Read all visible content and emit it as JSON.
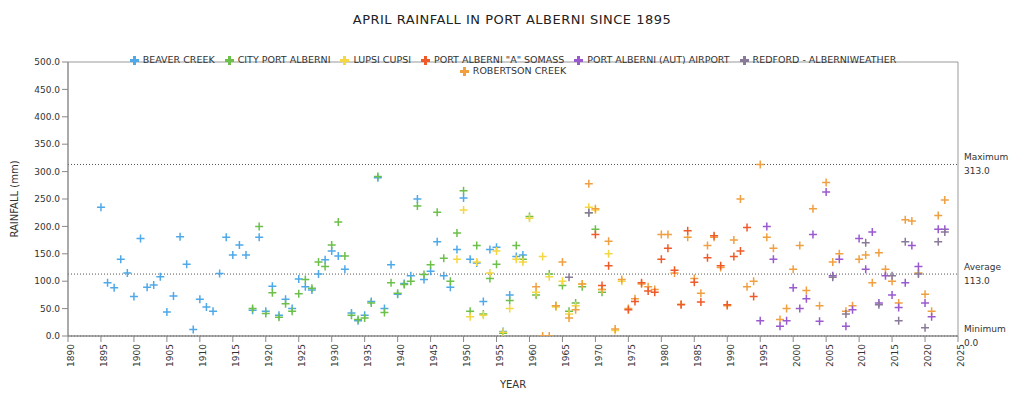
{
  "chart_data": {
    "type": "scatter",
    "title": "APRIL RAINFALL IN PORT ALBERNI SINCE 1895",
    "x_label": "YEAR",
    "y_label": "RAINFALL (mm)",
    "xlim": [
      1890,
      2025
    ],
    "xticks": [
      1890,
      1895,
      1900,
      1905,
      1910,
      1915,
      1920,
      1925,
      1930,
      1935,
      1940,
      1945,
      1950,
      1955,
      1960,
      1965,
      1970,
      1975,
      1980,
      1985,
      1990,
      1995,
      2000,
      2005,
      2010,
      2015,
      2020,
      2025
    ],
    "ylim": [
      0,
      500
    ],
    "yticks": [
      {
        "value": 0,
        "label": "0.0"
      },
      {
        "value": 50,
        "label": "50.0"
      },
      {
        "value": 100,
        "label": "100.0"
      },
      {
        "value": 150,
        "label": "150.0"
      },
      {
        "value": 200,
        "label": "200.0"
      },
      {
        "value": 250,
        "label": "250.0"
      },
      {
        "value": 300,
        "label": "300.0"
      },
      {
        "value": 350,
        "label": "350.0"
      },
      {
        "value": 400,
        "label": "400.0"
      },
      {
        "value": 450,
        "label": "450.0"
      },
      {
        "value": 500,
        "label": "500.0"
      }
    ],
    "grid": false,
    "legend": "top",
    "marker": "plus",
    "reference_lines": [
      {
        "label": "Maximum",
        "value": 313,
        "value_label": "313.0"
      },
      {
        "label": "Average",
        "value": 113,
        "value_label": "113.0"
      },
      {
        "label": "Minimum",
        "value": 0,
        "value_label": "0.0"
      }
    ],
    "series": [
      {
        "name": "BEAVER CREEK",
        "color": "#4fa9e8",
        "x": [
          1895,
          1896,
          1897,
          1898,
          1899,
          1900,
          1901,
          1902,
          1903,
          1904,
          1905,
          1906,
          1907,
          1908,
          1909,
          1910,
          1911,
          1912,
          1913,
          1914,
          1915,
          1916,
          1917,
          1918,
          1919,
          1920,
          1921,
          1922,
          1923,
          1924,
          1925,
          1926,
          1927,
          1928,
          1929,
          1930,
          1931,
          1932,
          1933,
          1934,
          1935,
          1936,
          1937,
          1938,
          1939,
          1940,
          1941,
          1942,
          1943,
          1944,
          1945,
          1946,
          1947,
          1948,
          1949,
          1950,
          1951,
          1952,
          1953,
          1954,
          1955,
          1956,
          1957,
          1958,
          1959
        ],
        "values": [
          235,
          97,
          88,
          140,
          115,
          72,
          178,
          89,
          93,
          108,
          44,
          73,
          181,
          131,
          12,
          67,
          53,
          45,
          114,
          180,
          148,
          166,
          148,
          47,
          180,
          45,
          91,
          38,
          67,
          50,
          104,
          90,
          84,
          113,
          139,
          155,
          146,
          122,
          42,
          28,
          38,
          63,
          289,
          50,
          130,
          76,
          96,
          110,
          250,
          103,
          118,
          172,
          110,
          89,
          158,
          252,
          140,
          133,
          63,
          158,
          162,
          8,
          75,
          145,
          148
        ]
      },
      {
        "name": "CITY PORT ALBERNI",
        "color": "#6cc04a",
        "x": [
          1918,
          1919,
          1920,
          1921,
          1922,
          1923,
          1924,
          1925,
          1926,
          1927,
          1928,
          1929,
          1930,
          1931,
          1932,
          1933,
          1934,
          1935,
          1936,
          1937,
          1938,
          1939,
          1940,
          1941,
          1942,
          1943,
          1944,
          1945,
          1946,
          1947,
          1948,
          1949,
          1950,
          1951,
          1952,
          1953,
          1954,
          1955,
          1956,
          1957,
          1958,
          1959,
          1960,
          1961,
          1963,
          1964,
          1965,
          1966,
          1967,
          1968,
          1969,
          1970,
          1971
        ],
        "values": [
          50,
          200,
          41,
          79,
          34,
          59,
          45,
          77,
          103,
          87,
          135,
          127,
          166,
          208,
          146,
          38,
          30,
          33,
          60,
          291,
          43,
          97,
          78,
          94,
          100,
          237,
          112,
          130,
          226,
          142,
          100,
          188,
          265,
          45,
          165,
          40,
          105,
          131,
          5,
          65,
          165,
          140,
          218,
          75,
          113,
          55,
          92,
          45,
          60,
          90,
          225,
          195,
          80
        ]
      },
      {
        "name": "LUPSI CUPSI",
        "color": "#f5d742",
        "x": [
          1949,
          1950,
          1951,
          1952,
          1953,
          1954,
          1955,
          1956,
          1957,
          1958,
          1959,
          1960,
          1961,
          1962,
          1963,
          1964,
          1965,
          1966,
          1967,
          1968,
          1969,
          1970,
          1971,
          1972,
          1973,
          1974
        ],
        "values": [
          140,
          230,
          35,
          135,
          38,
          115,
          155,
          7,
          50,
          140,
          135,
          215,
          80,
          145,
          108,
          53,
          100,
          40,
          55,
          95,
          235,
          230,
          85,
          150,
          10,
          100
        ]
      },
      {
        "name": "ROBERTSON CREEK",
        "color": "#f0a040",
        "x": [
          1961,
          1962,
          1963,
          1964,
          1965,
          1966,
          1967,
          1968,
          1969,
          1970,
          1971,
          1972,
          1973,
          1974,
          1975,
          1976,
          1977,
          1978,
          1979,
          1980,
          1981,
          1982,
          1983,
          1984,
          1985,
          1986,
          1987,
          1988,
          1989,
          1990,
          1991,
          1992,
          1993,
          1994,
          1995,
          1996,
          1997,
          1998,
          1999,
          2000,
          2001,
          2002,
          2003,
          2004,
          2005,
          2006,
          2007,
          2008,
          2009,
          2010,
          2011,
          2012,
          2013,
          2014,
          2015,
          2016,
          2017,
          2018,
          2019,
          2020,
          2021,
          2022,
          2023
        ],
        "values": [
          90,
          0,
          0,
          55,
          135,
          33,
          48,
          95,
          278,
          232,
          85,
          173,
          13,
          103,
          50,
          68,
          95,
          90,
          85,
          185,
          185,
          115,
          58,
          180,
          105,
          78,
          165,
          180,
          125,
          55,
          175,
          250,
          90,
          100,
          313,
          180,
          160,
          30,
          50,
          122,
          165,
          83,
          232,
          55,
          280,
          135,
          150,
          45,
          55,
          140,
          148,
          97,
          152,
          122,
          100,
          60,
          212,
          210,
          115,
          76,
          45,
          220,
          248
        ]
      },
      {
        "name": "PORT ALBERNI \"A\" SOMASS",
        "color": "#f05a28",
        "x": [
          1970,
          1971,
          1972,
          1975,
          1976,
          1977,
          1978,
          1979,
          1980,
          1981,
          1982,
          1983,
          1984,
          1985,
          1986,
          1987,
          1988,
          1989,
          1990,
          1991,
          1992,
          1993,
          1994
        ],
        "values": [
          185,
          92,
          128,
          48,
          63,
          97,
          82,
          80,
          140,
          160,
          120,
          57,
          192,
          98,
          62,
          143,
          183,
          128,
          57,
          145,
          155,
          198,
          72
        ]
      },
      {
        "name": "PORT ALBERNI (AUT) AIRPORT",
        "color": "#9b59d0",
        "x": [
          1995,
          1996,
          1997,
          1998,
          1999,
          2000,
          2001,
          2002,
          2003,
          2004,
          2005,
          2006,
          2007,
          2008,
          2009,
          2010,
          2011,
          2012,
          2013,
          2014,
          2015,
          2016,
          2017,
          2018,
          2019,
          2020,
          2021,
          2022,
          2023
        ],
        "values": [
          28,
          200,
          140,
          18,
          28,
          88,
          50,
          68,
          185,
          27,
          263,
          110,
          140,
          18,
          48,
          178,
          122,
          190,
          60,
          110,
          75,
          52,
          97,
          165,
          127,
          60,
          35,
          195,
          195
        ]
      },
      {
        "name": "REDFORD - ALBERNIWEATHER",
        "color": "#8a7a9a",
        "x": [
          1966,
          1969,
          2006,
          2008,
          2011,
          2013,
          2015,
          2016,
          2017,
          2019,
          2020,
          2022,
          2023
        ],
        "values": [
          107,
          225,
          107,
          40,
          170,
          57,
          110,
          28,
          172,
          113,
          15,
          172,
          190
        ]
      }
    ]
  }
}
